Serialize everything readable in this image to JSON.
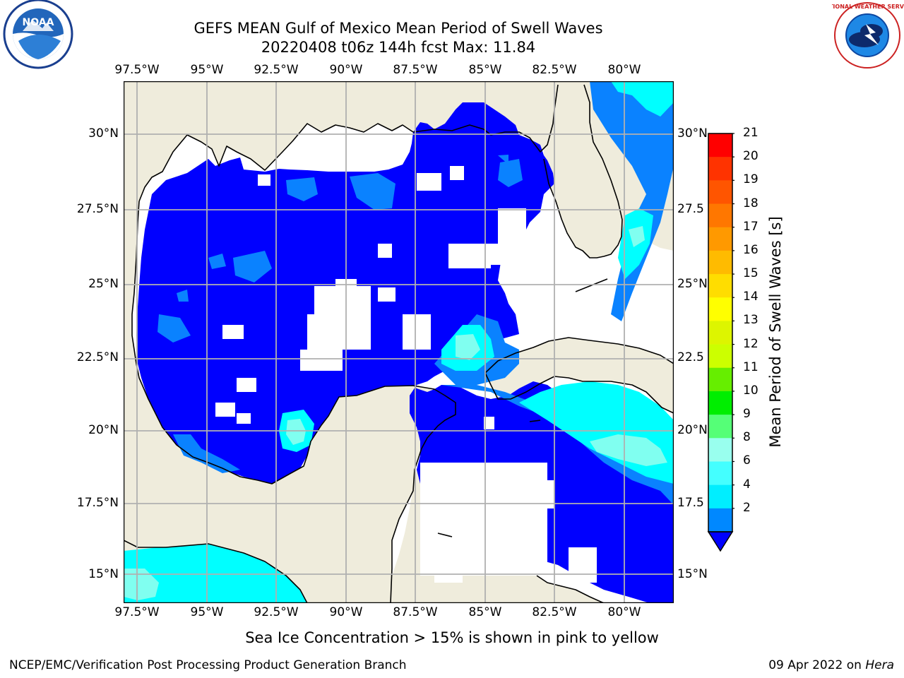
{
  "title": {
    "line1": "GEFS MEAN Gulf of Mexico Mean Period of Swell Waves",
    "line2": "20220408 t06z 144h fcst   Max: 11.84"
  },
  "axes": {
    "lon_labels": [
      "97.5°W",
      "95°W",
      "92.5°W",
      "90°W",
      "87.5°W",
      "85°W",
      "82.5°W",
      "80°W"
    ],
    "lat_labels_left": [
      "30°N",
      "27.5°N",
      "25°N",
      "22.5°N",
      "20°N",
      "17.5°N",
      "15°N"
    ],
    "lat_labels_right": [
      "30°N",
      "27.5",
      "25°N",
      "22.5",
      "20°N",
      "17.5",
      "15°N"
    ]
  },
  "colorbar": {
    "label": "Mean Period of Swell Waves [s]",
    "ticks": [
      "21",
      "20",
      "19",
      "18",
      "17",
      "16",
      "15",
      "14",
      "13",
      "12",
      "11",
      "10",
      "9",
      "8",
      "6",
      "4",
      "2"
    ],
    "colors": [
      "#ff0000",
      "#ff3300",
      "#ff5500",
      "#ff7700",
      "#ff9900",
      "#ffbb00",
      "#ffdd00",
      "#ffff00",
      "#ddf500",
      "#ccff00",
      "#66ee00",
      "#00ee00",
      "#55ff77",
      "#99ffee",
      "#44ffff",
      "#00eeff",
      "#0088ff"
    ],
    "extend_color": "#0000ff"
  },
  "colors": {
    "land": "#efecdc",
    "swell_2_4": "#0000ff",
    "swell_4_6": "#0a82ff",
    "swell_6_8": "#00ffff",
    "swell_8_9": "#55ffee",
    "swell_9_10": "#a0fff0",
    "grid": "#b0b0b0"
  },
  "footnote": "Sea Ice Concentration > 15% is shown in pink to yellow",
  "footer": {
    "left": "NCEP/EMC/Verification Post Processing Product Generation Branch",
    "right_date": "09 Apr 2022 on ",
    "right_host": "Hera"
  },
  "logos": {
    "noaa": "NOAA",
    "nws": "NATIONAL WEATHER SERVICE"
  }
}
